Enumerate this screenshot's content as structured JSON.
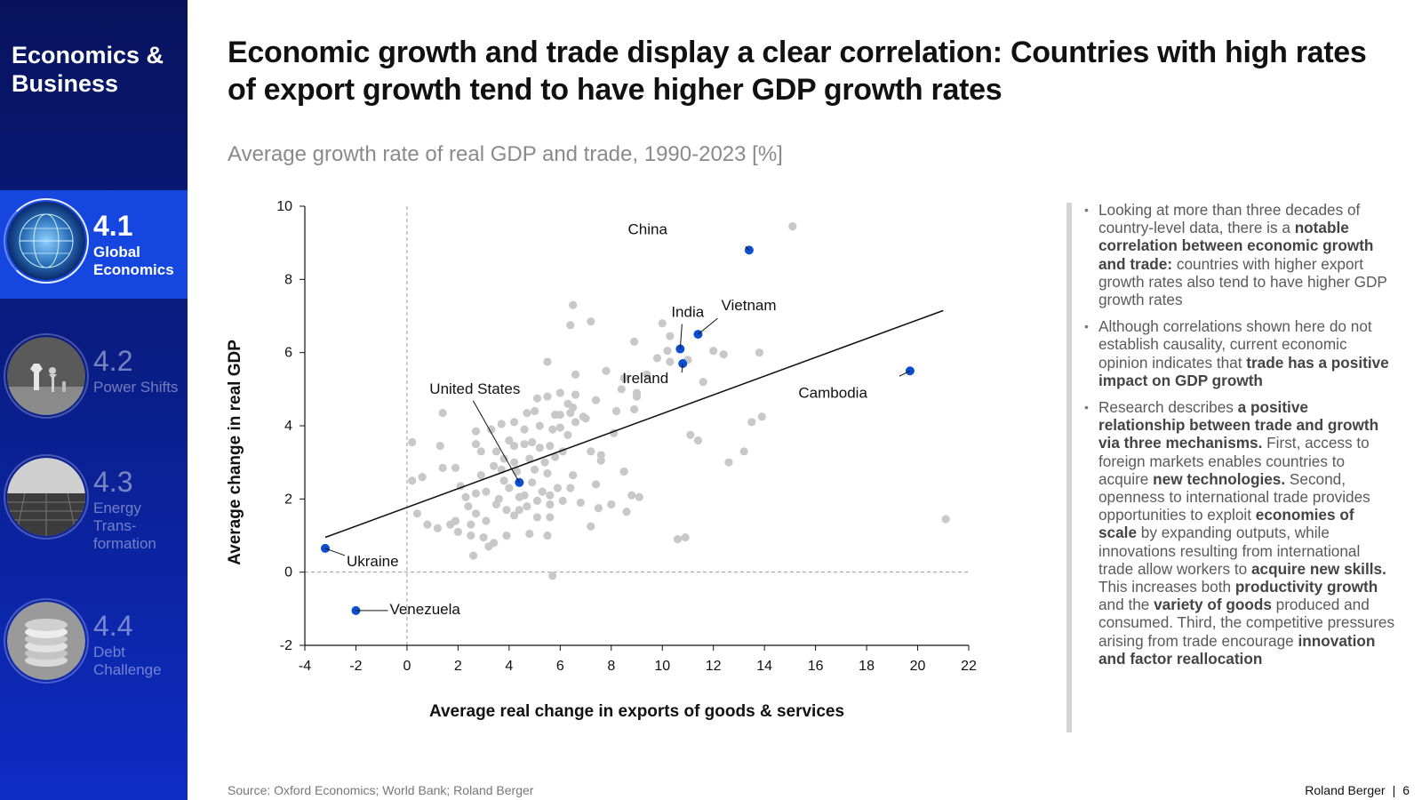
{
  "sidebar": {
    "brand": "Economics & Business",
    "items": [
      {
        "num": "4.1",
        "label": "Global Economics",
        "active": true
      },
      {
        "num": "4.2",
        "label": "Power Shifts",
        "active": false
      },
      {
        "num": "4.3",
        "label": "Energy Trans-formation",
        "active": false
      },
      {
        "num": "4.4",
        "label": "Debt Challenge",
        "active": false
      }
    ]
  },
  "header": {
    "title": "Economic growth and trade display a clear correlation: Countries with high rates of export growth tend to have higher GDP growth rates",
    "subtitle": "Average growth rate of real GDP and trade, 1990-2023 [%]"
  },
  "notes": {
    "p1": [
      "Looking at more than three decades of country-level data, there is a ",
      "notable correlation between economic growth and trade:",
      " countries with higher export growth rates also tend to have higher GDP growth rates"
    ],
    "p2": [
      "Although correlations shown here do not establish causality, current economic opinion indicates that ",
      "trade has a positive impact on GDP growth"
    ],
    "p3": [
      "Research describes ",
      "a positive relationship between trade and growth via three mechanisms.",
      " First, access to foreign markets enables countries to acquire ",
      "new technologies.",
      " Second, openness to international trade provides opportunities to exploit ",
      "economies of scale",
      " by expanding outputs, while innovations resulting from international trade allow workers to ",
      "acquire new skills.",
      " This increases both ",
      "productivity growth",
      " and the ",
      "variety of goods",
      " produced and consumed. Third, the competitive pressures arising from trade encourage ",
      "innovation and factor reallocation"
    ]
  },
  "footer": {
    "source": "Source: Oxford Economics; World Bank; Roland Berger",
    "brand": "Roland Berger",
    "page": "6"
  },
  "colors": {
    "sidebar_top": "#07135e",
    "sidebar_bottom": "#0d2cc4",
    "active_nav": "#1547e0",
    "highlight_point": "#0a4fcf",
    "background_point": "#c8c8c8",
    "trend_line": "#111111"
  },
  "chart_data": {
    "type": "scatter",
    "xlabel": "Average real change in exports of goods & services",
    "ylabel": "Average change in real GDP",
    "xlim": [
      -4,
      22
    ],
    "ylim": [
      -2,
      10
    ],
    "xticks": [
      -4,
      -2,
      0,
      2,
      4,
      6,
      8,
      10,
      12,
      14,
      16,
      18,
      20,
      22
    ],
    "yticks": [
      -2,
      0,
      2,
      4,
      6,
      8,
      10
    ],
    "trendline": {
      "x": [
        -3.2,
        21
      ],
      "y": [
        0.95,
        7.15
      ]
    },
    "highlighted": [
      {
        "label": "China",
        "x": 13.4,
        "y": 8.8
      },
      {
        "label": "Vietnam",
        "x": 11.4,
        "y": 6.5
      },
      {
        "label": "India",
        "x": 10.7,
        "y": 6.1
      },
      {
        "label": "Ireland",
        "x": 10.8,
        "y": 5.7
      },
      {
        "label": "Cambodia",
        "x": 19.7,
        "y": 5.5
      },
      {
        "label": "United States",
        "x": 4.4,
        "y": 2.45
      },
      {
        "label": "Ukraine",
        "x": -3.2,
        "y": 0.65
      },
      {
        "label": "Venezuela",
        "x": -2.0,
        "y": -1.05
      }
    ],
    "points": [
      [
        15.1,
        9.45
      ],
      [
        6.5,
        7.3
      ],
      [
        6.4,
        6.75
      ],
      [
        7.2,
        6.85
      ],
      [
        10.0,
        6.8
      ],
      [
        10.3,
        6.45
      ],
      [
        8.9,
        6.3
      ],
      [
        10.2,
        6.05
      ],
      [
        12.0,
        6.05
      ],
      [
        12.4,
        5.95
      ],
      [
        13.8,
        6.0
      ],
      [
        9.8,
        5.85
      ],
      [
        10.3,
        5.75
      ],
      [
        11.0,
        5.8
      ],
      [
        5.5,
        5.75
      ],
      [
        7.8,
        5.5
      ],
      [
        9.4,
        5.4
      ],
      [
        6.6,
        5.4
      ],
      [
        8.5,
        5.3
      ],
      [
        11.6,
        5.2
      ],
      [
        8.4,
        5.0
      ],
      [
        9.0,
        4.9
      ],
      [
        9.0,
        4.8
      ],
      [
        6.0,
        4.9
      ],
      [
        6.6,
        4.85
      ],
      [
        5.5,
        4.8
      ],
      [
        5.1,
        4.75
      ],
      [
        7.4,
        4.7
      ],
      [
        6.3,
        4.6
      ],
      [
        6.5,
        4.5
      ],
      [
        8.9,
        4.45
      ],
      [
        8.2,
        4.4
      ],
      [
        6.0,
        4.3
      ],
      [
        6.4,
        4.35
      ],
      [
        5.0,
        4.4
      ],
      [
        4.7,
        4.35
      ],
      [
        1.4,
        4.35
      ],
      [
        5.8,
        4.3
      ],
      [
        6.9,
        4.25
      ],
      [
        6.6,
        4.1
      ],
      [
        7.0,
        4.2
      ],
      [
        4.2,
        4.1
      ],
      [
        5.2,
        4.0
      ],
      [
        6.0,
        3.95
      ],
      [
        13.9,
        4.25
      ],
      [
        13.5,
        4.1
      ],
      [
        3.7,
        4.05
      ],
      [
        4.6,
        3.9
      ],
      [
        5.7,
        3.9
      ],
      [
        6.3,
        3.75
      ],
      [
        8.1,
        3.8
      ],
      [
        11.1,
        3.75
      ],
      [
        2.7,
        3.85
      ],
      [
        3.3,
        3.9
      ],
      [
        4.0,
        3.6
      ],
      [
        4.6,
        3.5
      ],
      [
        4.9,
        3.55
      ],
      [
        5.2,
        3.4
      ],
      [
        5.6,
        3.45
      ],
      [
        4.2,
        3.45
      ],
      [
        3.5,
        3.3
      ],
      [
        2.9,
        3.3
      ],
      [
        1.3,
        3.45
      ],
      [
        2.7,
        3.5
      ],
      [
        7.2,
        3.3
      ],
      [
        7.6,
        3.2
      ],
      [
        6.1,
        3.3
      ],
      [
        4.8,
        3.1
      ],
      [
        5.8,
        3.15
      ],
      [
        5.4,
        3.0
      ],
      [
        3.8,
        3.1
      ],
      [
        4.2,
        3.0
      ],
      [
        11.4,
        3.6
      ],
      [
        13.2,
        3.3
      ],
      [
        12.6,
        3.0
      ],
      [
        0.2,
        3.55
      ],
      [
        1.4,
        2.85
      ],
      [
        1.9,
        2.85
      ],
      [
        3.4,
        2.9
      ],
      [
        3.7,
        2.8
      ],
      [
        4.3,
        2.75
      ],
      [
        5.0,
        2.8
      ],
      [
        5.5,
        2.7
      ],
      [
        2.9,
        2.65
      ],
      [
        6.5,
        2.65
      ],
      [
        7.6,
        3.05
      ],
      [
        8.5,
        2.75
      ],
      [
        0.6,
        2.6
      ],
      [
        0.2,
        2.5
      ],
      [
        3.8,
        2.5
      ],
      [
        4.9,
        2.45
      ],
      [
        7.4,
        2.4
      ],
      [
        5.9,
        2.3
      ],
      [
        2.1,
        2.35
      ],
      [
        4.0,
        2.3
      ],
      [
        5.3,
        2.2
      ],
      [
        6.4,
        2.3
      ],
      [
        3.1,
        2.2
      ],
      [
        4.6,
        2.1
      ],
      [
        5.6,
        2.1
      ],
      [
        2.3,
        2.05
      ],
      [
        2.7,
        2.15
      ],
      [
        3.6,
        2.0
      ],
      [
        4.4,
        2.05
      ],
      [
        8.8,
        2.1
      ],
      [
        9.1,
        2.05
      ],
      [
        6.1,
        1.95
      ],
      [
        8.0,
        1.85
      ],
      [
        5.1,
        1.95
      ],
      [
        5.6,
        1.85
      ],
      [
        6.8,
        1.9
      ],
      [
        2.4,
        1.8
      ],
      [
        3.5,
        1.85
      ],
      [
        4.7,
        1.8
      ],
      [
        7.5,
        1.75
      ],
      [
        3.9,
        1.7
      ],
      [
        4.4,
        1.7
      ],
      [
        8.6,
        1.65
      ],
      [
        0.4,
        1.6
      ],
      [
        2.7,
        1.6
      ],
      [
        4.2,
        1.55
      ],
      [
        5.1,
        1.5
      ],
      [
        5.6,
        1.5
      ],
      [
        1.9,
        1.4
      ],
      [
        3.1,
        1.4
      ],
      [
        0.8,
        1.3
      ],
      [
        1.7,
        1.3
      ],
      [
        2.5,
        1.3
      ],
      [
        7.2,
        1.25
      ],
      [
        1.2,
        1.2
      ],
      [
        2.0,
        1.1
      ],
      [
        3.9,
        1.0
      ],
      [
        4.8,
        1.05
      ],
      [
        5.5,
        1.0
      ],
      [
        2.5,
        1.0
      ],
      [
        3.0,
        0.95
      ],
      [
        3.4,
        0.8
      ],
      [
        3.2,
        0.7
      ],
      [
        2.6,
        0.45
      ],
      [
        10.6,
        0.9
      ],
      [
        10.9,
        0.95
      ],
      [
        21.1,
        1.45
      ],
      [
        5.7,
        -0.1
      ]
    ]
  }
}
